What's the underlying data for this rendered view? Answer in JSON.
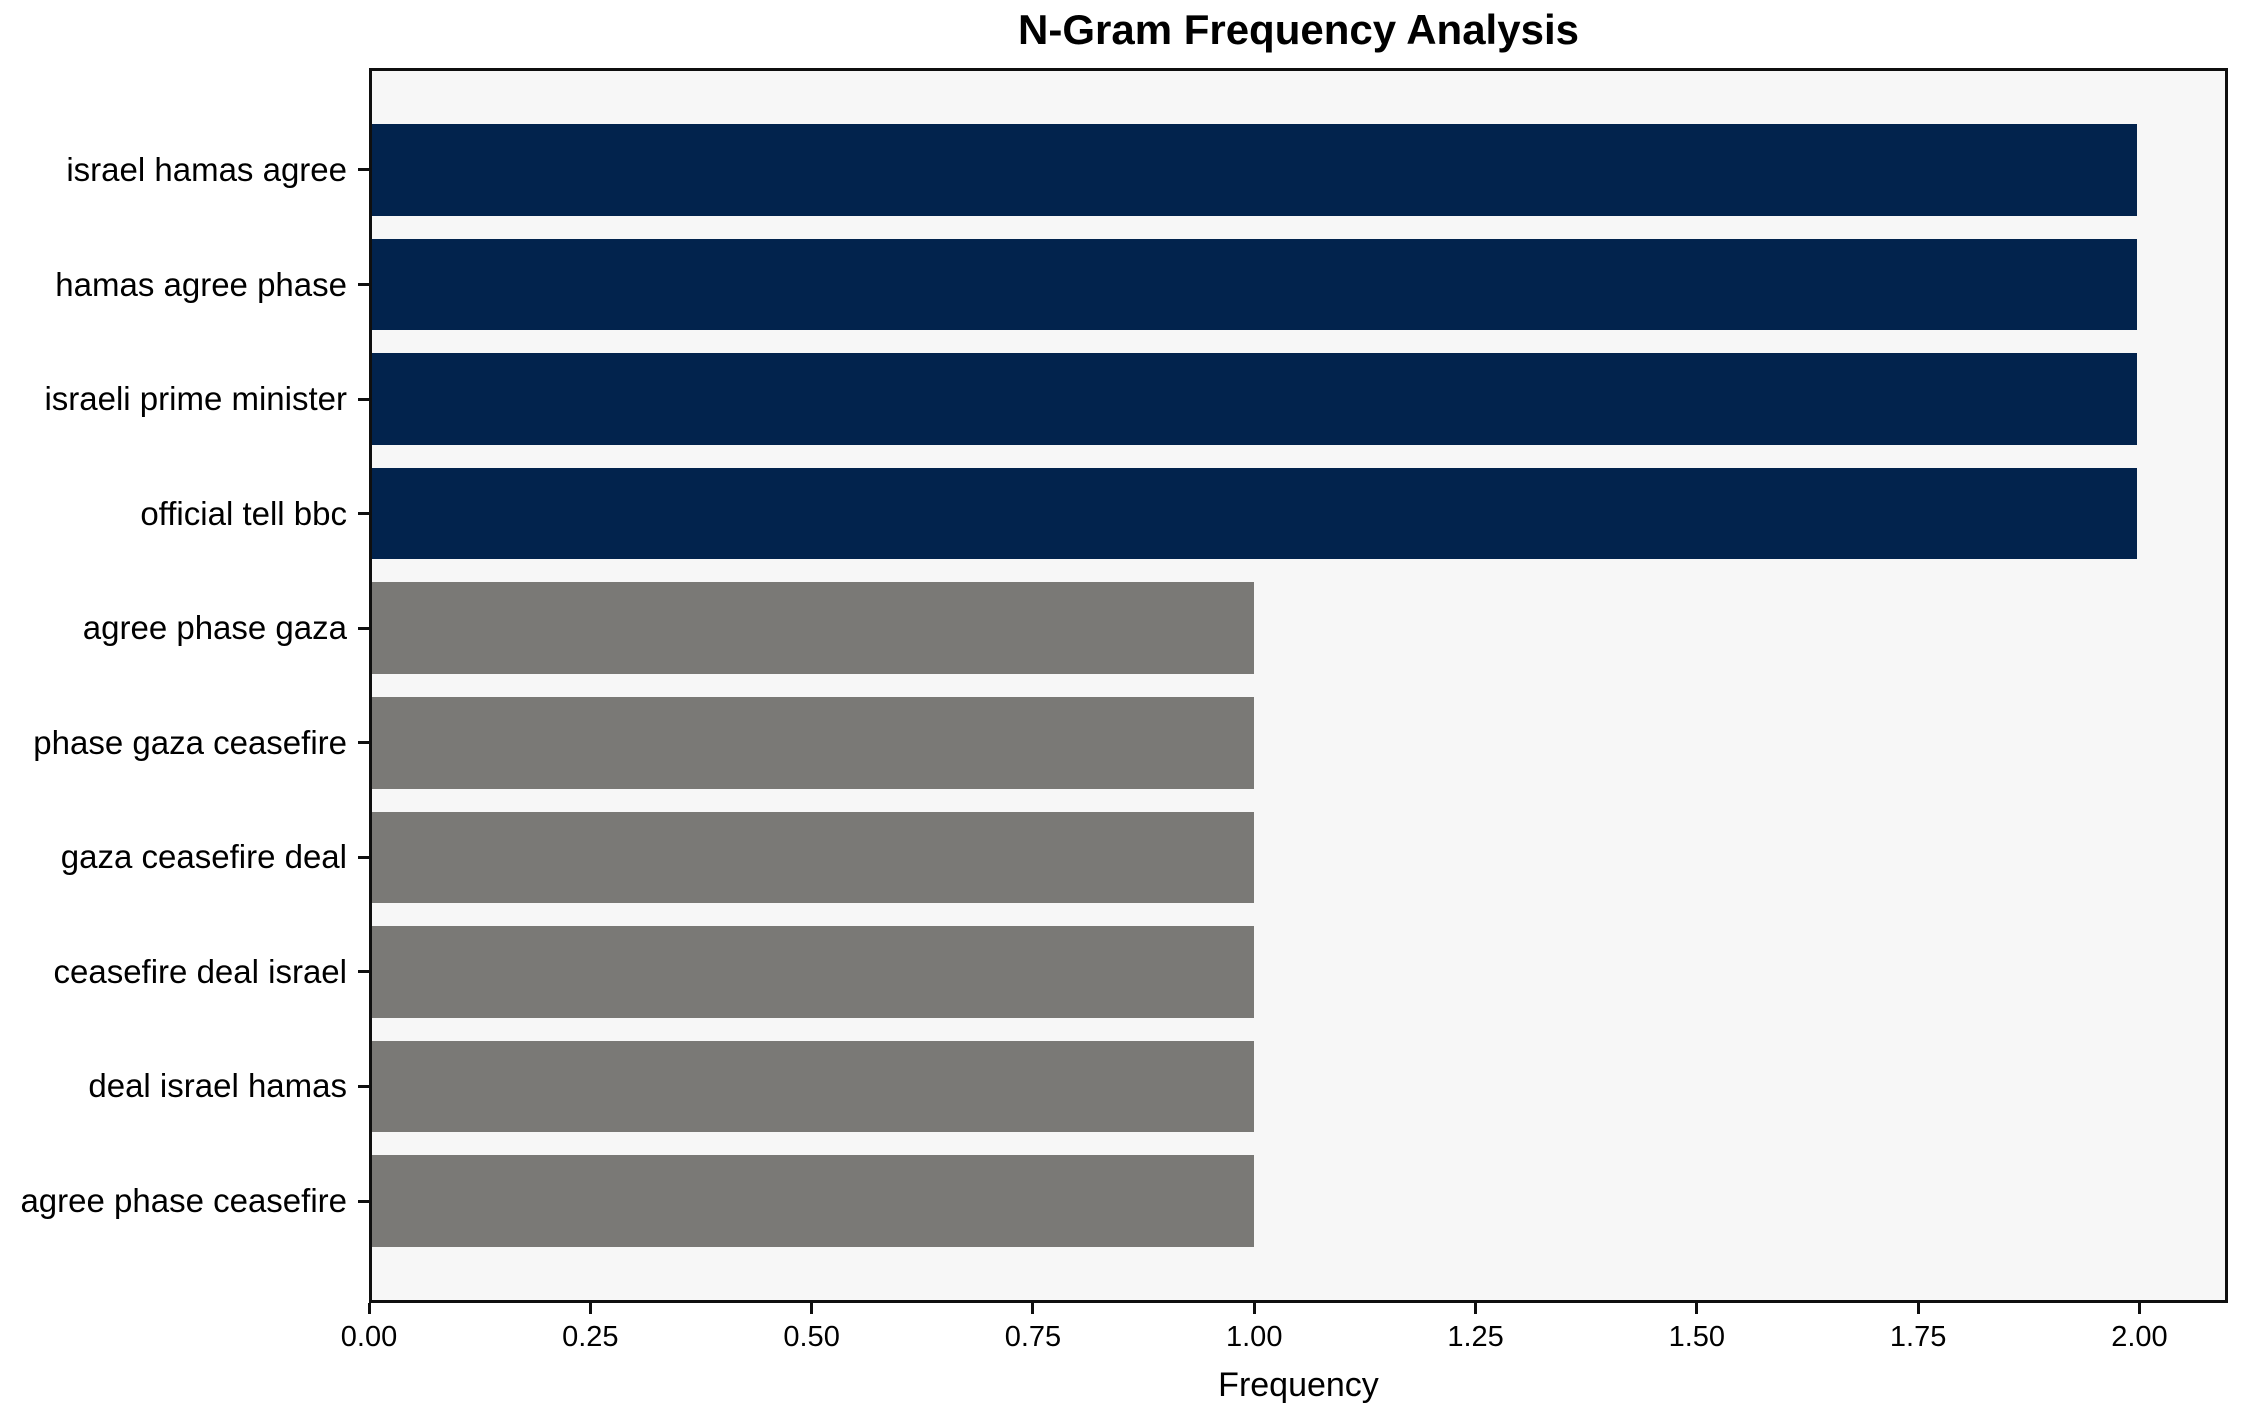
{
  "chart_data": {
    "type": "bar",
    "orientation": "horizontal",
    "title": "N-Gram Frequency Analysis",
    "xlabel": "Frequency",
    "ylabel": "",
    "categories": [
      "israel hamas agree",
      "hamas agree phase",
      "israeli prime minister",
      "official tell bbc",
      "agree phase gaza",
      "phase gaza ceasefire",
      "gaza ceasefire deal",
      "ceasefire deal israel",
      "deal israel hamas",
      "agree phase ceasefire"
    ],
    "values": [
      2,
      2,
      2,
      2,
      1,
      1,
      1,
      1,
      1,
      1
    ],
    "bar_colors": [
      "#02234d",
      "#02234d",
      "#02234d",
      "#02234d",
      "#7a7976",
      "#7a7976",
      "#7a7976",
      "#7a7976",
      "#7a7976",
      "#7a7976"
    ],
    "x_tick_labels": [
      "0.00",
      "0.25",
      "0.50",
      "0.75",
      "1.00",
      "1.25",
      "1.50",
      "1.75",
      "2.00"
    ],
    "x_tick_values": [
      0,
      0.25,
      0.5,
      0.75,
      1.0,
      1.25,
      1.5,
      1.75,
      2.0
    ],
    "xlim": [
      0,
      2.1
    ],
    "grid": false,
    "legend": "none",
    "colors": {
      "high_freq_bar": "#02234d",
      "low_freq_bar": "#7a7976",
      "plot_background": "#f7f7f7",
      "figure_background": "#ffffff",
      "axis_line": "#0f0f0f",
      "text": "#000000"
    }
  }
}
